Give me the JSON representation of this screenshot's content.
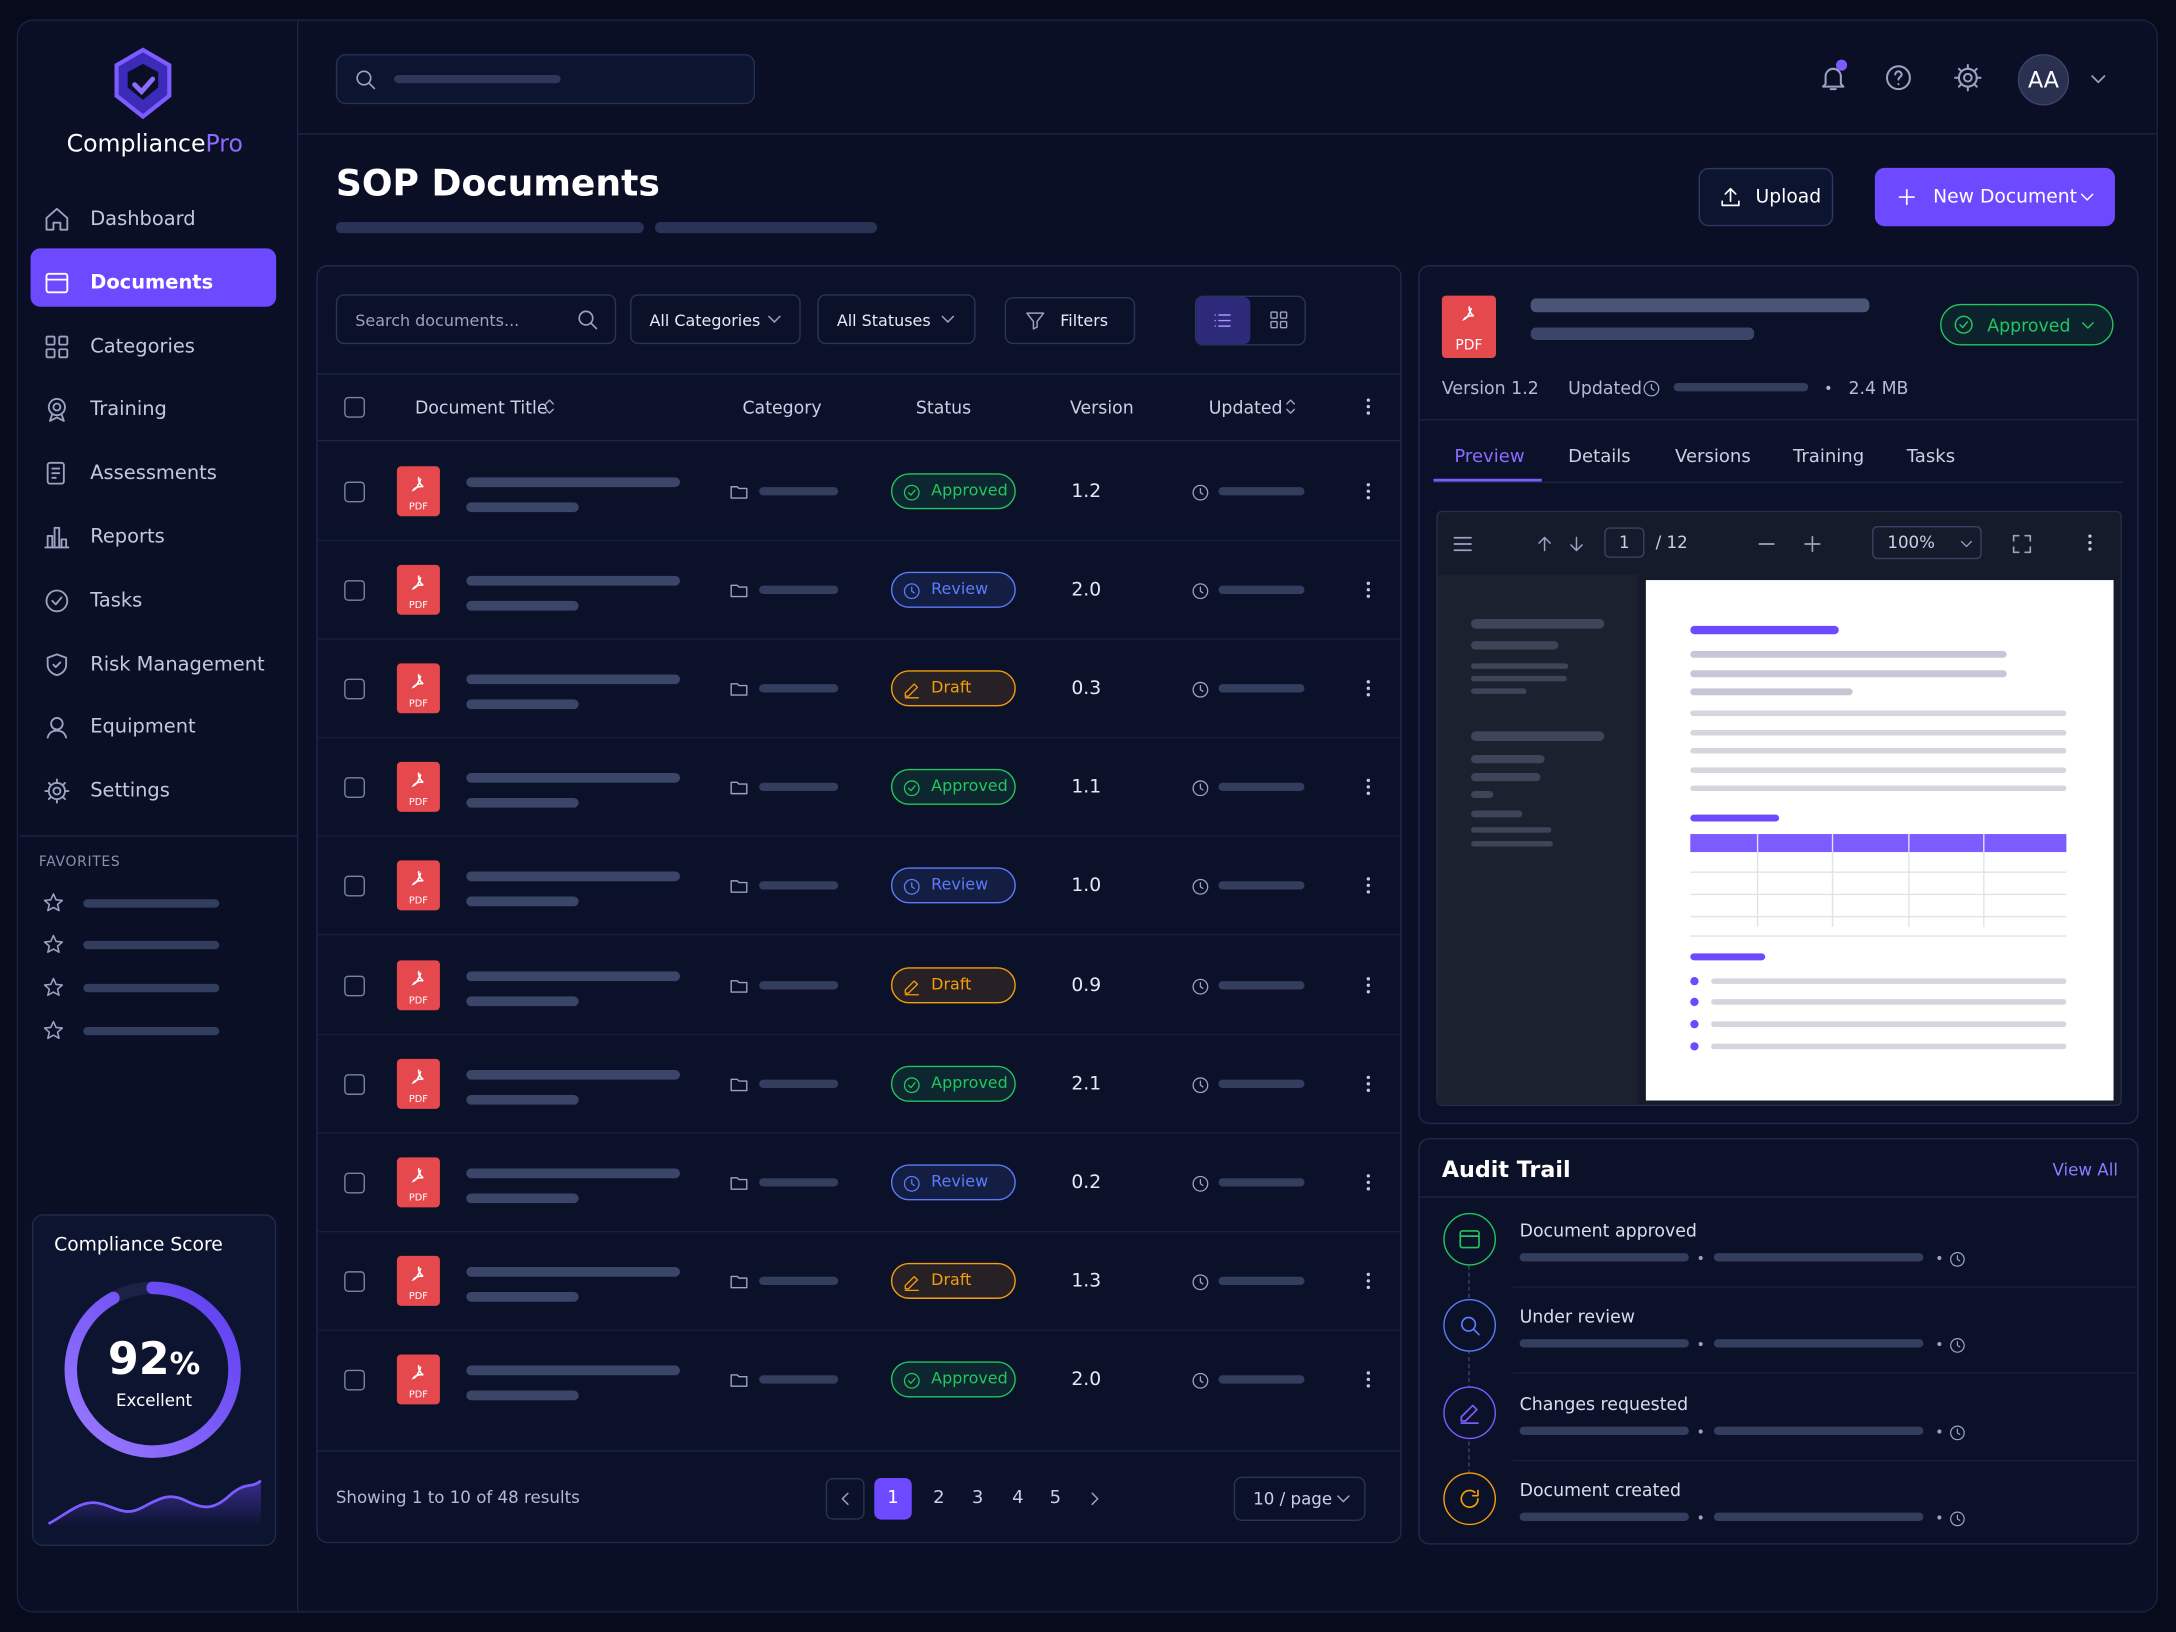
{
  "brand": {
    "name": "Compliance",
    "accent": "Pro"
  },
  "nav": {
    "items": [
      "Dashboard",
      "Documents",
      "Categories",
      "Training",
      "Assessments",
      "Reports",
      "Tasks",
      "Risk Management",
      "Equipment",
      "Settings"
    ],
    "active": 1
  },
  "favorites": {
    "label": "FAVORITES"
  },
  "score": {
    "title": "Compliance Score",
    "value": 92,
    "unit": "%",
    "rating": "Excellent"
  },
  "header": {
    "avatar": "AA"
  },
  "page": {
    "title": "SOP Documents",
    "upload": "Upload",
    "new_document": "New Document"
  },
  "toolbar": {
    "search_placeholder": "Search documents...",
    "categories": "All Categories",
    "statuses": "All Statuses",
    "filters": "Filters"
  },
  "file_type": "PDF",
  "table": {
    "columns": [
      "Document Title",
      "Category",
      "Status",
      "Version",
      "Updated"
    ],
    "rows": [
      {
        "status": "Approved",
        "color": "#22c55e",
        "version": "1.2"
      },
      {
        "status": "Review",
        "color": "#5b7cfa",
        "version": "2.0"
      },
      {
        "status": "Draft",
        "color": "#f59e0b",
        "version": "0.3"
      },
      {
        "status": "Approved",
        "color": "#22c55e",
        "version": "1.1"
      },
      {
        "status": "Review",
        "color": "#5b7cfa",
        "version": "1.0"
      },
      {
        "status": "Draft",
        "color": "#f59e0b",
        "version": "0.9"
      },
      {
        "status": "Approved",
        "color": "#22c55e",
        "version": "2.1"
      },
      {
        "status": "Review",
        "color": "#5b7cfa",
        "version": "0.2"
      },
      {
        "status": "Draft",
        "color": "#f59e0b",
        "version": "1.3"
      },
      {
        "status": "Approved",
        "color": "#22c55e",
        "version": "2.0"
      }
    ]
  },
  "pagination": {
    "summary": "Showing 1 to 10 of 48 results",
    "pages": [
      "1",
      "2",
      "3",
      "4",
      "5"
    ],
    "current": 0,
    "page_size": "10 / page"
  },
  "detail": {
    "status": "Approved",
    "status_color": "#22c55e",
    "version": "Version 1.2",
    "updated": "Updated",
    "size": "2.4 MB",
    "tabs": [
      "Preview",
      "Details",
      "Versions",
      "Training",
      "Tasks"
    ],
    "active_tab": 0,
    "viewer": {
      "page": "1",
      "total": "/ 12",
      "zoom": "100%"
    }
  },
  "audit": {
    "title": "Audit Trail",
    "view_all": "View All",
    "items": [
      {
        "label": "Document approved",
        "color": "#22c55e"
      },
      {
        "label": "Under review",
        "color": "#5b7cfa"
      },
      {
        "label": "Changes requested",
        "color": "#7c5cff"
      },
      {
        "label": "Document created",
        "color": "#f59e0b"
      }
    ]
  }
}
